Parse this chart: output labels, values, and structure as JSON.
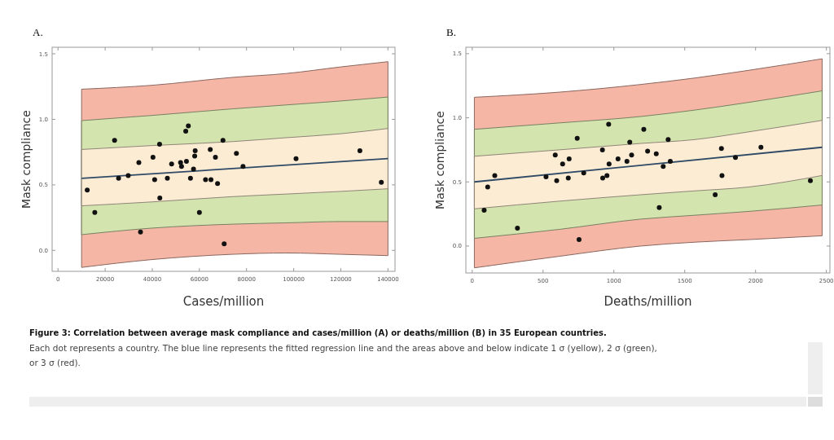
{
  "chart_data": [
    {
      "type": "scatter",
      "title": "A.",
      "xlabel": "Cases/million",
      "ylabel": "Mask compliance",
      "xlim": [
        -2500,
        143000
      ],
      "xticks": [
        0,
        20000,
        40000,
        60000,
        80000,
        100000,
        120000,
        140000
      ],
      "ylim": [
        -0.16,
        1.55
      ],
      "yticks": [
        {
          "value": 0,
          "label": "0.0"
        },
        {
          "value": 0.5,
          "label": "0.5"
        },
        {
          "value": 1,
          "label": "1.0"
        },
        {
          "value": 1.5,
          "label": "1.5"
        }
      ],
      "series": [
        {
          "type": "line",
          "color": "#f5b6a6",
          "x": [
            10000,
            40000,
            74000,
            97000,
            120000,
            140000
          ],
          "values": [
            null,
            null,
            null,
            null,
            null,
            null
          ],
          "lower": [
            -0.13,
            -0.07,
            -0.03,
            -0.02,
            -0.03,
            -0.04
          ],
          "upper": [
            1.23,
            1.26,
            1.32,
            1.35,
            1.4,
            1.44
          ]
        },
        {
          "type": "line",
          "color": "#d4e4ae",
          "x": [
            10000,
            40000,
            74000,
            97000,
            120000,
            140000
          ],
          "values": [
            null,
            null,
            null,
            null,
            null,
            null
          ],
          "lower": [
            0.12,
            0.17,
            0.2,
            0.21,
            0.22,
            0.22
          ],
          "upper": [
            0.99,
            1.03,
            1.08,
            1.11,
            1.14,
            1.17
          ]
        },
        {
          "type": "line",
          "color": "#fcecd4",
          "x": [
            10000,
            40000,
            74000,
            97000,
            120000,
            140000
          ],
          "values": [
            null,
            null,
            null,
            null,
            null,
            null
          ],
          "lower": [
            0.34,
            0.37,
            0.41,
            0.43,
            0.45,
            0.47
          ],
          "upper": [
            0.77,
            0.8,
            0.83,
            0.86,
            0.89,
            0.93
          ]
        },
        {
          "type": "line",
          "color": "#2f4a66",
          "x": [
            10000,
            140000
          ],
          "values": [
            0.55,
            0.7
          ]
        },
        {
          "type": "scatter",
          "marker": "circle",
          "color": "#111111",
          "x": [
            12400,
            15600,
            24000,
            25700,
            29800,
            34300,
            35000,
            40300,
            41000,
            43100,
            43200,
            46400,
            48200,
            52000,
            52400,
            54200,
            54500,
            55300,
            56200,
            57500,
            58000,
            58200,
            60000,
            62600,
            64600,
            64900,
            66800,
            67700,
            70000,
            70500,
            75700,
            78500,
            101000,
            128100,
            137200
          ],
          "values": [
            0.46,
            0.29,
            0.84,
            0.55,
            0.57,
            0.67,
            0.14,
            0.71,
            0.54,
            0.81,
            0.4,
            0.55,
            0.66,
            0.67,
            0.64,
            0.91,
            0.68,
            0.95,
            0.55,
            0.62,
            0.72,
            0.76,
            0.29,
            0.54,
            0.77,
            0.54,
            0.71,
            0.51,
            0.84,
            0.05,
            0.74,
            0.64,
            0.7,
            0.76,
            0.52
          ]
        }
      ],
      "annotations": [
        "Figure 3: Correlation between average mask compliance and cases/million (A) or deaths/million (B) in 35 European countries.",
        "Each dot represents a country. The blue line represents the fitted regression line and the areas above and below indicate 1 σ (yellow), 2 σ (green), or 3 σ (red)."
      ]
    },
    {
      "type": "scatter",
      "title": "B.",
      "xlabel": "Deaths/million",
      "ylabel": "Mask compliance",
      "xlim": [
        -45,
        2525
      ],
      "xticks": [
        0,
        500,
        1000,
        1500,
        2000,
        2500
      ],
      "ylim": [
        -0.21,
        1.55
      ],
      "yticks": [
        {
          "value": 0,
          "label": "0.0"
        },
        {
          "value": 0.5,
          "label": "0.5"
        },
        {
          "value": 1,
          "label": "1.0"
        },
        {
          "value": 1.5,
          "label": "1.5"
        }
      ],
      "series": [
        {
          "type": "line",
          "color": "#f5b6a6",
          "x": [
            15,
            615,
            1190,
            1570,
            1950,
            2470
          ],
          "values": [
            null,
            null,
            null,
            null,
            null,
            null
          ],
          "lower": [
            -0.17,
            -0.08,
            0,
            0.03,
            0.05,
            0.08
          ],
          "upper": [
            1.16,
            1.2,
            1.26,
            1.31,
            1.37,
            1.46
          ]
        },
        {
          "type": "line",
          "color": "#d4e4ae",
          "x": [
            15,
            615,
            1190,
            1570,
            1950,
            2470
          ],
          "values": [
            null,
            null,
            null,
            null,
            null,
            null
          ],
          "lower": [
            0.06,
            0.13,
            0.21,
            0.24,
            0.27,
            0.32
          ],
          "upper": [
            0.91,
            0.96,
            1.01,
            1.06,
            1.12,
            1.21
          ]
        },
        {
          "type": "line",
          "color": "#fcecd4",
          "x": [
            15,
            615,
            1190,
            1570,
            1950,
            2470
          ],
          "values": [
            null,
            null,
            null,
            null,
            null,
            null
          ],
          "lower": [
            0.29,
            0.35,
            0.4,
            0.43,
            0.46,
            0.55
          ],
          "upper": [
            0.7,
            0.75,
            0.8,
            0.83,
            0.89,
            0.98
          ]
        },
        {
          "type": "line",
          "color": "#2f4a66",
          "x": [
            15,
            2470
          ],
          "values": [
            0.5,
            0.77
          ]
        },
        {
          "type": "scatter",
          "marker": "circle",
          "color": "#111111",
          "x": [
            84,
            109,
            159,
            319,
            521,
            586,
            596,
            638,
            678,
            684,
            741,
            754,
            787,
            919,
            921,
            951,
            963,
            966,
            1029,
            1092,
            1112,
            1125,
            1211,
            1238,
            1299,
            1320,
            1348,
            1383,
            1398,
            1715,
            1759,
            1763,
            1858,
            2038,
            2387
          ],
          "values": [
            0.28,
            0.46,
            0.55,
            0.14,
            0.54,
            0.71,
            0.51,
            0.64,
            0.53,
            0.68,
            0.84,
            0.05,
            0.57,
            0.75,
            0.53,
            0.55,
            0.95,
            0.64,
            0.68,
            0.66,
            0.81,
            0.71,
            0.91,
            0.74,
            0.72,
            0.3,
            0.62,
            0.83,
            0.66,
            0.4,
            0.76,
            0.55,
            0.69,
            0.77,
            0.51
          ]
        }
      ]
    }
  ]
}
